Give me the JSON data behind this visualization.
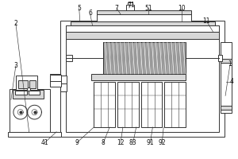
{
  "bg_color": "#ffffff",
  "line_color": "#333333",
  "gray_light": "#d8d8d8",
  "gray_mid": "#aaaaaa",
  "gray_dark": "#888888",
  "gray_drum": "#999999"
}
